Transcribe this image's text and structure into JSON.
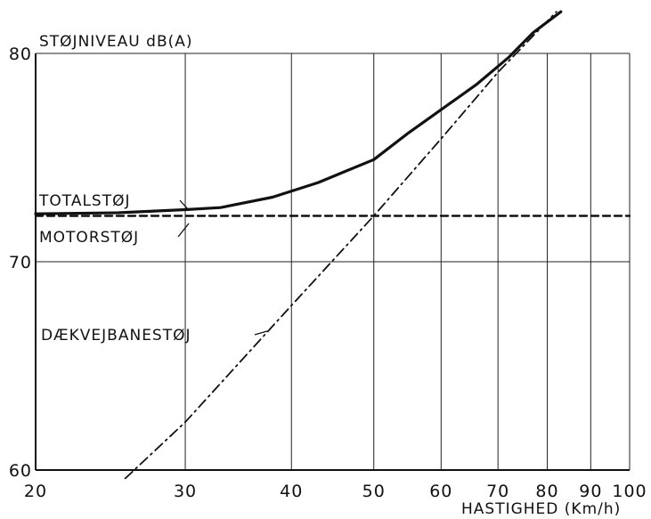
{
  "chart_data": {
    "type": "line",
    "title": "",
    "ylabel": "STØJNIVEAU dB(A)",
    "xlabel": "HASTIGHED (Km/h)",
    "x_scale": "log",
    "xlim": [
      20,
      100
    ],
    "ylim": [
      60,
      80
    ],
    "x_ticks": [
      {
        "value": 20,
        "label": "20"
      },
      {
        "value": 30,
        "label": "30"
      },
      {
        "value": 40,
        "label": "40"
      },
      {
        "value": 50,
        "label": "50"
      },
      {
        "value": 60,
        "label": "60"
      },
      {
        "value": 70,
        "label": "70"
      },
      {
        "value": 80,
        "label": "80"
      },
      {
        "value": 90,
        "label": "90"
      },
      {
        "value": 100,
        "label": "100"
      }
    ],
    "y_ticks": [
      {
        "value": 60,
        "label": "60"
      },
      {
        "value": 70,
        "label": "70"
      },
      {
        "value": 80,
        "label": "80"
      }
    ],
    "grid": true,
    "series": [
      {
        "name": "TOTALSTØJ",
        "style": "solid",
        "color": "#111111",
        "points": [
          [
            20,
            72.3
          ],
          [
            25,
            72.35
          ],
          [
            30,
            72.5
          ],
          [
            33,
            72.6
          ],
          [
            38,
            73.1
          ],
          [
            43,
            73.8
          ],
          [
            50,
            74.9
          ],
          [
            55,
            76.2
          ],
          [
            60,
            77.3
          ],
          [
            66,
            78.5
          ],
          [
            72,
            79.8
          ],
          [
            77,
            81.0
          ],
          [
            83,
            82.0
          ]
        ]
      },
      {
        "name": "MOTORSTØJ",
        "style": "dashed",
        "color": "#111111",
        "points": [
          [
            20,
            72.2
          ],
          [
            100,
            72.2
          ]
        ]
      },
      {
        "name": "DÆKVEJBANESTØJ",
        "style": "dash-dot",
        "color": "#111111",
        "points": [
          [
            25.5,
            59.6
          ],
          [
            30,
            62.3
          ],
          [
            40,
            67.9
          ],
          [
            50,
            72.2
          ],
          [
            60,
            75.9
          ],
          [
            70,
            79.1
          ],
          [
            82,
            82.0
          ]
        ]
      }
    ]
  }
}
